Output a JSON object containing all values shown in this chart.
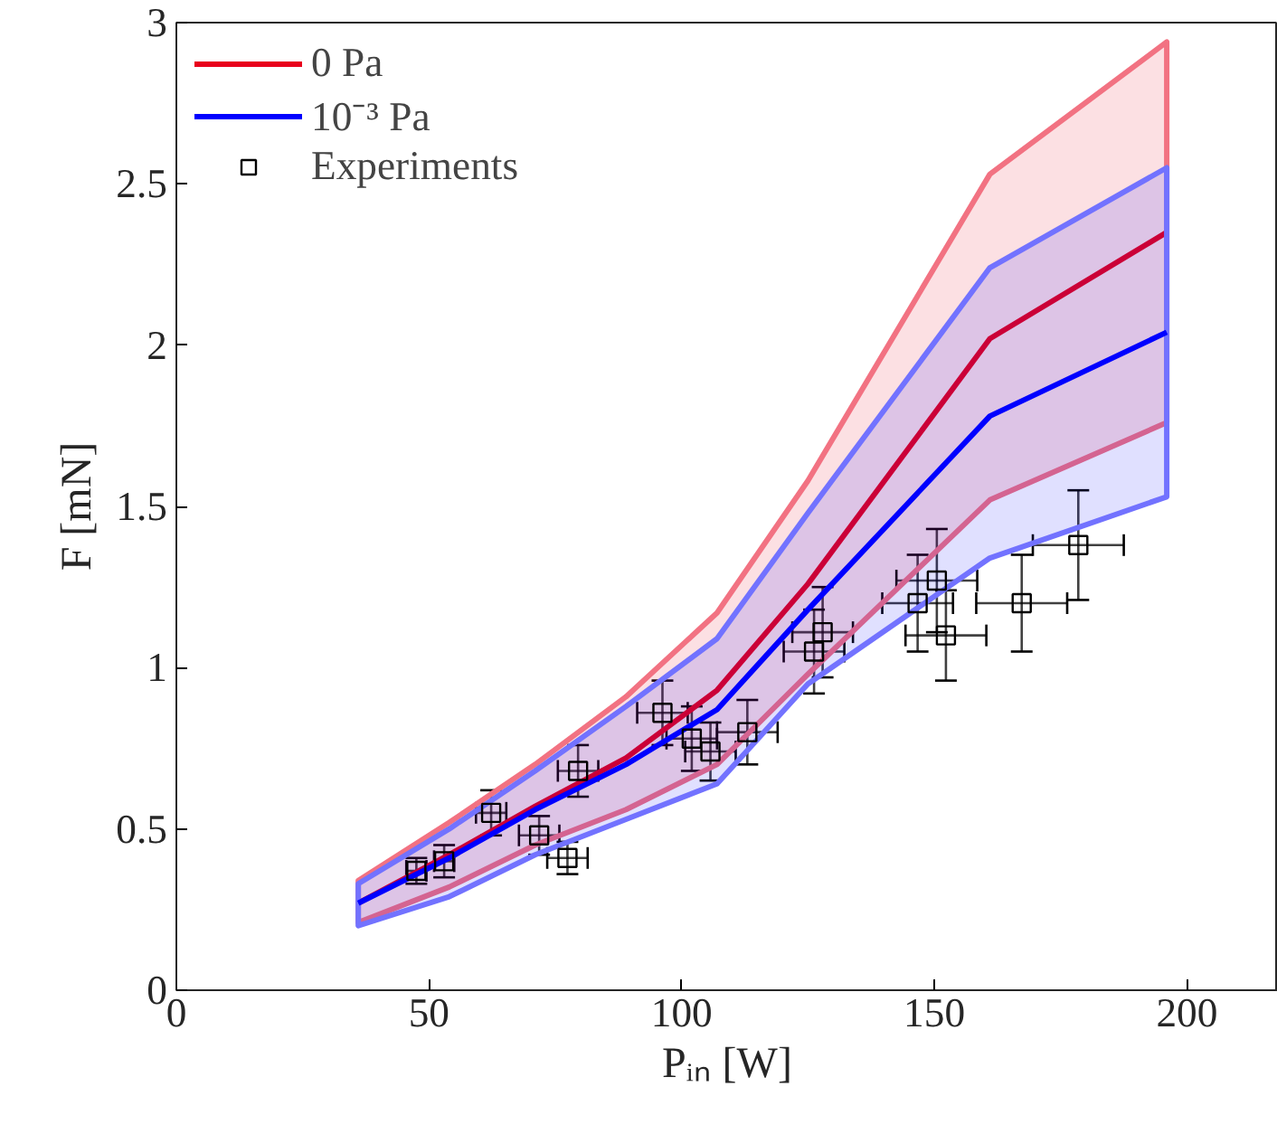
{
  "chart_data": {
    "type": "line",
    "xlabel": "Pᵢₙ [W]",
    "ylabel": "F [mN]",
    "xlim": [
      0,
      218
    ],
    "xticks": [
      0,
      50,
      100,
      150,
      200
    ],
    "ylim": [
      0,
      3
    ],
    "yticks": [
      0,
      0.5,
      1,
      1.5,
      2,
      2.5,
      3
    ],
    "grid": false,
    "legend": "top left",
    "line_style": "solid",
    "series": [
      {
        "name": "0 Pa",
        "color": "#e8001c",
        "x": [
          36,
          54,
          71,
          89,
          107,
          125,
          161,
          196
        ],
        "values": [
          0.27,
          0.42,
          0.57,
          0.72,
          0.93,
          1.26,
          2.02,
          2.35
        ],
        "lower": [
          0.21,
          0.32,
          0.45,
          0.56,
          0.7,
          0.98,
          1.52,
          1.76
        ],
        "upper": [
          0.34,
          0.52,
          0.7,
          0.91,
          1.17,
          1.58,
          2.53,
          2.94
        ]
      },
      {
        "name": "10⁻³ Pa",
        "color": "#0000ff",
        "x": [
          36,
          54,
          71,
          89,
          107,
          125,
          161,
          196
        ],
        "values": [
          0.27,
          0.41,
          0.56,
          0.7,
          0.87,
          1.18,
          1.78,
          2.04
        ],
        "lower": [
          0.2,
          0.29,
          0.42,
          0.53,
          0.64,
          0.95,
          1.34,
          1.53
        ],
        "upper": [
          0.33,
          0.5,
          0.68,
          0.88,
          1.09,
          1.48,
          2.24,
          2.55
        ]
      },
      {
        "name": "Experiments",
        "type": "scatter",
        "marker": "square",
        "color": "#000000",
        "x": [
          47.5,
          53,
          62.3,
          71.8,
          77.4,
          79.5,
          96.2,
          102,
          105.7,
          113,
          126.2,
          127.9,
          146.7,
          150.5,
          152.3,
          167.3,
          178.5
        ],
        "values": [
          0.37,
          0.4,
          0.55,
          0.48,
          0.41,
          0.68,
          0.86,
          0.78,
          0.74,
          0.8,
          1.05,
          1.11,
          1.2,
          1.27,
          1.1,
          1.2,
          1.38
        ],
        "errors": [
          0.04,
          0.05,
          0.07,
          0.06,
          0.05,
          0.08,
          0.1,
          0.1,
          0.09,
          0.1,
          0.13,
          0.14,
          0.15,
          0.16,
          0.14,
          0.15,
          0.17
        ],
        "xerrors": [
          2,
          2,
          3,
          4,
          4,
          4,
          5,
          5,
          5,
          6,
          6,
          6,
          7,
          8,
          8,
          9,
          9
        ]
      }
    ]
  }
}
